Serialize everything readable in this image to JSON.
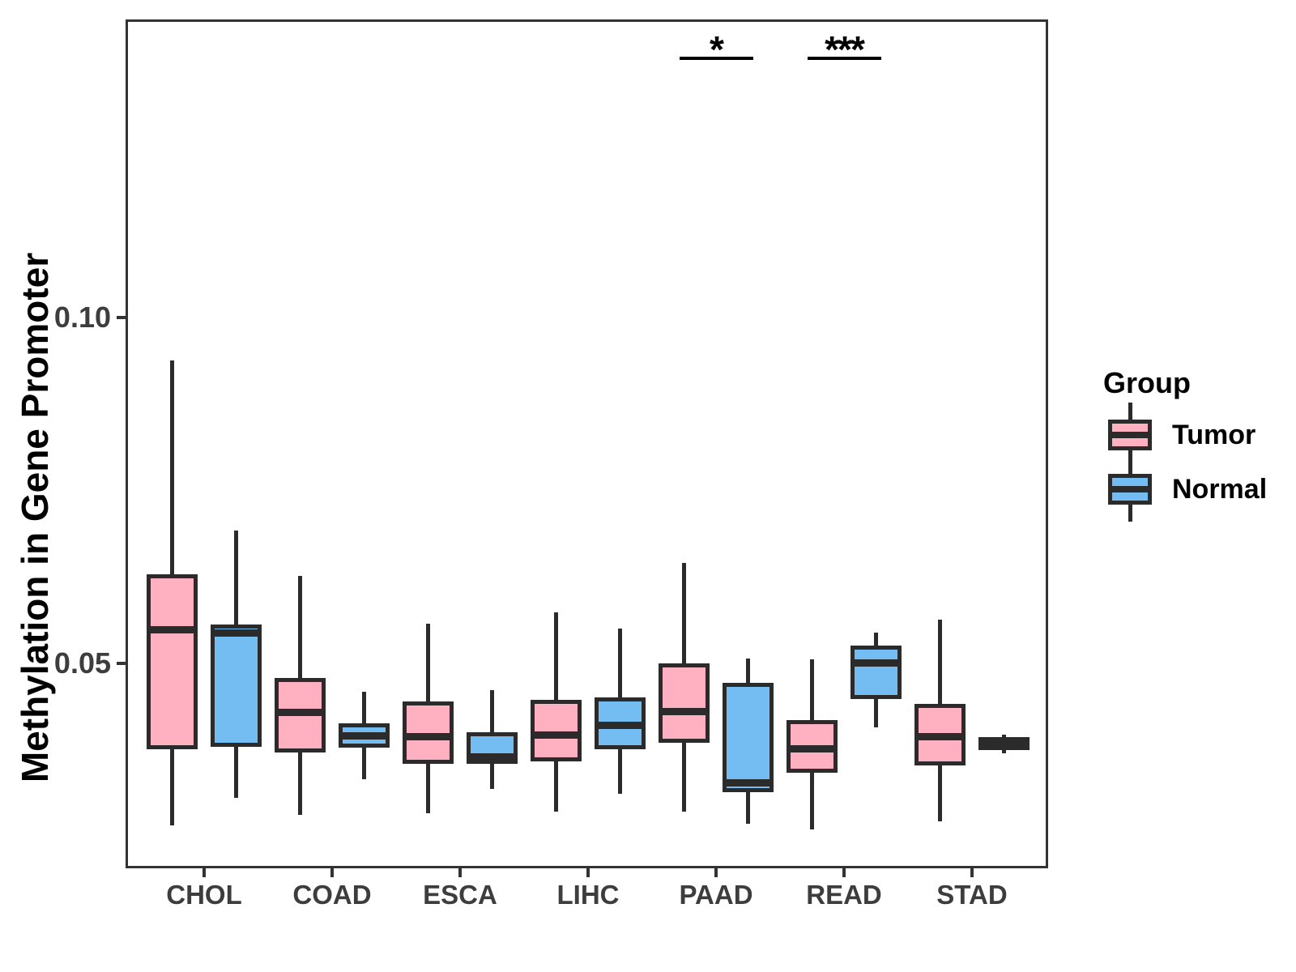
{
  "y_axis": {
    "title": "Methylation in Gene Promoter",
    "ticks": [
      {
        "label": "0.10",
        "value": 0.1
      },
      {
        "label": "0.05",
        "value": 0.05
      }
    ]
  },
  "x_axis": {
    "categories": [
      "CHOL",
      "COAD",
      "ESCA",
      "LIHC",
      "PAAD",
      "READ",
      "STAD"
    ]
  },
  "legend": {
    "title": "Group",
    "items": [
      {
        "label": "Tumor",
        "color": "#FFB0C1"
      },
      {
        "label": "Normal",
        "color": "#74BDF2"
      }
    ]
  },
  "colors": {
    "tumor_fill": "#FFB0C1",
    "normal_fill": "#74BDF2",
    "box_stroke": "#2b2b2b",
    "panel_border": "#333333",
    "tick_text": "#3d3d3d",
    "sig_text": "#000000"
  },
  "chart_data": {
    "type": "boxplot",
    "title": "",
    "xlabel": "",
    "ylabel": "Methylation in Gene Promoter",
    "ylim": [
      0.02,
      0.143
    ],
    "yticks": [
      0.05,
      0.1
    ],
    "grid": false,
    "legend_title": "Group",
    "legend_position": "right",
    "categories": [
      "CHOL",
      "COAD",
      "ESCA",
      "LIHC",
      "PAAD",
      "READ",
      "STAD"
    ],
    "series": [
      {
        "name": "Tumor",
        "color": "#FFB0C1",
        "boxes": [
          {
            "category": "CHOL",
            "low": 0.0266,
            "q1": 0.0376,
            "median": 0.0549,
            "q3": 0.0629,
            "high": 0.0938
          },
          {
            "category": "COAD",
            "low": 0.0281,
            "q1": 0.0371,
            "median": 0.0429,
            "q3": 0.0479,
            "high": 0.0627
          },
          {
            "category": "ESCA",
            "low": 0.0283,
            "q1": 0.0355,
            "median": 0.0394,
            "q3": 0.0445,
            "high": 0.0557
          },
          {
            "category": "LIHC",
            "low": 0.0286,
            "q1": 0.0358,
            "median": 0.0396,
            "q3": 0.0447,
            "high": 0.0574
          },
          {
            "category": "PAAD",
            "low": 0.0286,
            "q1": 0.0385,
            "median": 0.043,
            "q3": 0.05,
            "high": 0.0645
          },
          {
            "category": "READ",
            "low": 0.026,
            "q1": 0.0342,
            "median": 0.0376,
            "q3": 0.0418,
            "high": 0.0506
          },
          {
            "category": "STAD",
            "low": 0.0272,
            "q1": 0.0353,
            "median": 0.0394,
            "q3": 0.0442,
            "high": 0.0563
          }
        ]
      },
      {
        "name": "Normal",
        "color": "#74BDF2",
        "boxes": [
          {
            "category": "CHOL",
            "low": 0.0306,
            "q1": 0.0379,
            "median": 0.0544,
            "q3": 0.0556,
            "high": 0.0692
          },
          {
            "category": "COAD",
            "low": 0.0332,
            "q1": 0.0378,
            "median": 0.0395,
            "q3": 0.0413,
            "high": 0.0459
          },
          {
            "category": "ESCA",
            "low": 0.0318,
            "q1": 0.0355,
            "median": 0.0365,
            "q3": 0.04,
            "high": 0.0461
          },
          {
            "category": "LIHC",
            "low": 0.0312,
            "q1": 0.0376,
            "median": 0.041,
            "q3": 0.0451,
            "high": 0.055
          },
          {
            "category": "PAAD",
            "low": 0.0268,
            "q1": 0.0314,
            "median": 0.0327,
            "q3": 0.0472,
            "high": 0.0507
          },
          {
            "category": "READ",
            "low": 0.0407,
            "q1": 0.0449,
            "median": 0.0501,
            "q3": 0.0526,
            "high": 0.0544
          },
          {
            "category": "STAD",
            "low": 0.037,
            "q1": 0.0375,
            "median": 0.0384,
            "q3": 0.0394,
            "high": 0.0397
          }
        ]
      }
    ],
    "significance": [
      {
        "category": "PAAD",
        "label": "*"
      },
      {
        "category": "READ",
        "label": "***"
      }
    ]
  }
}
